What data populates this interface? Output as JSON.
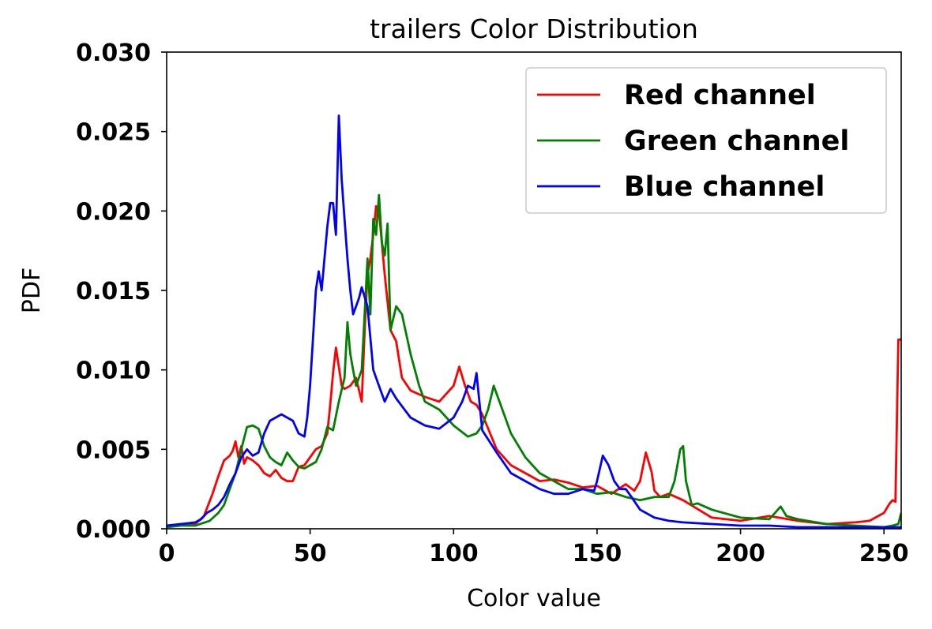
{
  "chart_data": {
    "type": "line",
    "title": "trailers Color Distribution",
    "xlabel": "Color value",
    "ylabel": "PDF",
    "xlim": [
      0,
      256
    ],
    "ylim": [
      0,
      0.03
    ],
    "x_ticks": [
      0,
      50,
      100,
      150,
      200,
      250
    ],
    "x_tick_labels": [
      "0",
      "50",
      "100",
      "150",
      "200",
      "250"
    ],
    "y_ticks": [
      0,
      0.005,
      0.01,
      0.015,
      0.02,
      0.025,
      0.03
    ],
    "y_tick_labels": [
      "0.000",
      "0.005",
      "0.010",
      "0.015",
      "0.020",
      "0.025",
      "0.030"
    ],
    "grid": false,
    "legend_position": "top-right",
    "series": [
      {
        "name": "Red channel",
        "color": "#ff0000",
        "x": [
          0,
          5,
          10,
          13,
          16,
          18,
          20,
          22,
          23,
          24,
          25,
          26,
          27,
          28,
          30,
          32,
          34,
          36,
          38,
          40,
          42,
          44,
          46,
          48,
          50,
          52,
          54,
          56,
          57,
          58,
          59,
          60,
          61,
          62,
          64,
          66,
          68,
          69,
          70,
          71,
          72,
          73,
          74,
          76,
          78,
          80,
          82,
          85,
          90,
          95,
          100,
          102,
          104,
          106,
          108,
          110,
          115,
          120,
          125,
          130,
          135,
          140,
          145,
          150,
          155,
          160,
          163,
          165,
          167,
          169,
          170,
          172,
          175,
          180,
          190,
          200,
          210,
          220,
          230,
          240,
          245,
          248,
          250,
          252,
          253,
          254,
          255,
          256
        ],
        "y": [
          0.0002,
          0.0003,
          0.0003,
          0.0008,
          0.0022,
          0.0033,
          0.0043,
          0.0046,
          0.0049,
          0.0055,
          0.0045,
          0.0052,
          0.0041,
          0.0045,
          0.0043,
          0.004,
          0.0035,
          0.0033,
          0.0037,
          0.0032,
          0.003,
          0.003,
          0.0039,
          0.004,
          0.0045,
          0.005,
          0.0052,
          0.006,
          0.0078,
          0.0098,
          0.0114,
          0.0102,
          0.009,
          0.0088,
          0.009,
          0.0095,
          0.008,
          0.0125,
          0.016,
          0.017,
          0.0185,
          0.0203,
          0.02,
          0.016,
          0.0125,
          0.0118,
          0.0095,
          0.0087,
          0.0083,
          0.008,
          0.009,
          0.0102,
          0.009,
          0.008,
          0.0078,
          0.0072,
          0.005,
          0.004,
          0.0035,
          0.003,
          0.0031,
          0.0029,
          0.0026,
          0.0027,
          0.0022,
          0.0028,
          0.0024,
          0.003,
          0.0048,
          0.0036,
          0.0024,
          0.002,
          0.0022,
          0.0018,
          0.0007,
          0.0005,
          0.0008,
          0.0005,
          0.0003,
          0.0004,
          0.0005,
          0.0008,
          0.001,
          0.0016,
          0.0018,
          0.0017,
          0.0119,
          0.0119
        ]
      },
      {
        "name": "Green channel",
        "color": "#008000",
        "x": [
          0,
          5,
          10,
          15,
          18,
          20,
          22,
          24,
          26,
          28,
          30,
          32,
          34,
          36,
          38,
          40,
          42,
          44,
          46,
          48,
          50,
          52,
          54,
          56,
          58,
          60,
          62,
          63,
          64,
          65,
          66,
          68,
          70,
          71,
          72,
          73,
          74,
          75,
          76,
          77,
          78,
          80,
          82,
          85,
          88,
          90,
          95,
          100,
          105,
          108,
          110,
          112,
          114,
          116,
          118,
          120,
          125,
          130,
          135,
          140,
          145,
          150,
          155,
          160,
          165,
          170,
          175,
          177,
          179,
          180,
          181,
          183,
          185,
          190,
          200,
          210,
          212,
          214,
          216,
          220,
          230,
          240,
          250,
          253,
          255,
          256
        ],
        "y": [
          0.0001,
          0.0002,
          0.0002,
          0.0005,
          0.001,
          0.0015,
          0.0025,
          0.0035,
          0.005,
          0.0064,
          0.0065,
          0.0063,
          0.0052,
          0.0045,
          0.0042,
          0.004,
          0.0048,
          0.0043,
          0.0039,
          0.0038,
          0.004,
          0.0042,
          0.005,
          0.0064,
          0.0062,
          0.008,
          0.0095,
          0.013,
          0.011,
          0.01,
          0.009,
          0.01,
          0.017,
          0.0135,
          0.0195,
          0.0185,
          0.021,
          0.018,
          0.0172,
          0.0192,
          0.0125,
          0.014,
          0.0135,
          0.011,
          0.009,
          0.008,
          0.0075,
          0.0065,
          0.0058,
          0.006,
          0.0065,
          0.0075,
          0.009,
          0.008,
          0.007,
          0.006,
          0.0045,
          0.0035,
          0.003,
          0.0025,
          0.0025,
          0.0022,
          0.0023,
          0.002,
          0.0018,
          0.002,
          0.002,
          0.003,
          0.005,
          0.0052,
          0.003,
          0.0015,
          0.0016,
          0.0012,
          0.0007,
          0.0006,
          0.001,
          0.0014,
          0.0008,
          0.0006,
          0.0003,
          0.0002,
          0.0001,
          0.0002,
          0.0003,
          0.001
        ]
      },
      {
        "name": "Blue channel",
        "color": "#0000ff",
        "x": [
          0,
          5,
          10,
          12,
          14,
          16,
          18,
          20,
          22,
          24,
          26,
          28,
          30,
          32,
          34,
          36,
          38,
          40,
          42,
          44,
          46,
          48,
          49,
          50,
          51,
          52,
          53,
          54,
          55,
          56,
          57,
          58,
          59,
          60,
          61,
          62,
          63,
          64,
          65,
          66,
          67,
          68,
          70,
          72,
          74,
          76,
          78,
          80,
          85,
          90,
          95,
          100,
          103,
          105,
          107,
          108,
          110,
          115,
          120,
          125,
          130,
          135,
          140,
          145,
          149,
          150,
          152,
          154,
          156,
          158,
          160,
          162,
          165,
          170,
          175,
          180,
          190,
          200,
          210,
          220,
          230,
          240,
          250,
          255,
          256
        ],
        "y": [
          0.0002,
          0.0003,
          0.0004,
          0.0006,
          0.001,
          0.0012,
          0.0015,
          0.002,
          0.0028,
          0.0035,
          0.0045,
          0.005,
          0.0046,
          0.0048,
          0.006,
          0.0068,
          0.007,
          0.0072,
          0.007,
          0.0068,
          0.006,
          0.0058,
          0.007,
          0.009,
          0.012,
          0.015,
          0.0162,
          0.015,
          0.017,
          0.019,
          0.0205,
          0.0205,
          0.0185,
          0.026,
          0.022,
          0.0195,
          0.017,
          0.015,
          0.0135,
          0.014,
          0.0145,
          0.0152,
          0.014,
          0.01,
          0.009,
          0.008,
          0.0088,
          0.0082,
          0.007,
          0.0065,
          0.0063,
          0.007,
          0.008,
          0.009,
          0.0088,
          0.0098,
          0.0062,
          0.0048,
          0.0035,
          0.003,
          0.0025,
          0.0022,
          0.0022,
          0.0025,
          0.0024,
          0.003,
          0.0046,
          0.004,
          0.003,
          0.0025,
          0.0025,
          0.002,
          0.0012,
          0.0007,
          0.0005,
          0.0004,
          0.0003,
          0.0002,
          0.0002,
          0.0001,
          0.0001,
          0.0001,
          0.0001,
          0.0001,
          0.0001
        ]
      }
    ]
  }
}
